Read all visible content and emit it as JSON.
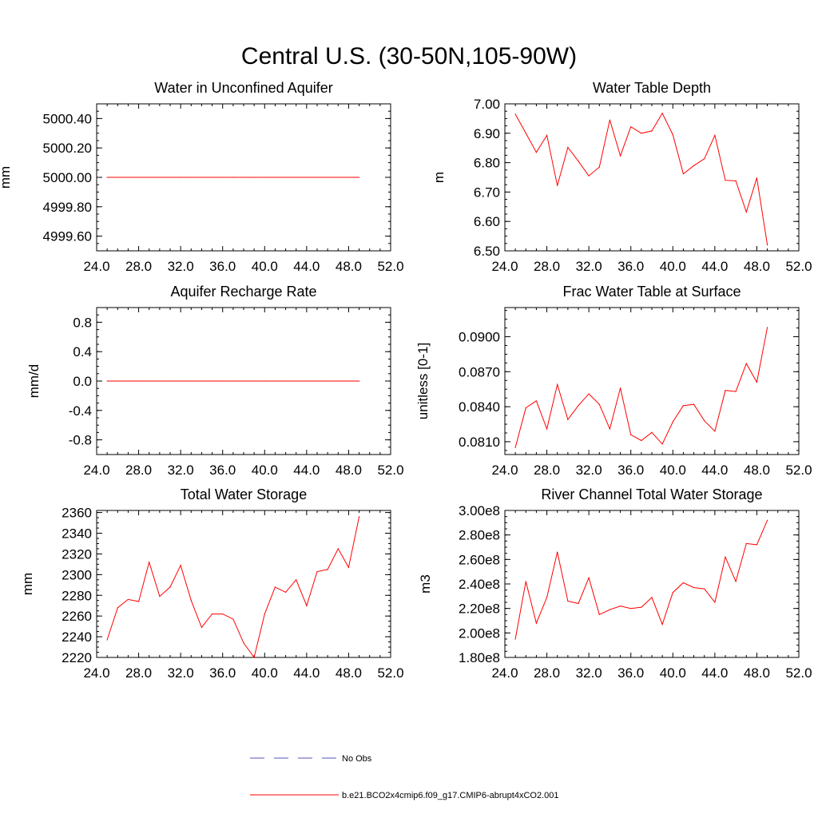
{
  "figure_title": "Central U.S. (30-50N,105-90W)",
  "colors": {
    "model": "#ff0000",
    "obs": "#5555bb",
    "axis": "#000000"
  },
  "legend": {
    "obs_label": "No Obs",
    "model_label": "b.e21.BCO2x4cmip6.f09_g17.CMIP6-abrupt4xCO2.001"
  },
  "chart_data": [
    {
      "type": "line",
      "title": "Water in Unconfined Aquifer",
      "xlabel": "",
      "ylabel": "mm",
      "xlim": [
        24,
        52
      ],
      "xticks": [
        24,
        28,
        32,
        36,
        40,
        44,
        48,
        52
      ],
      "xtick_labels": [
        "24.0",
        "28.0",
        "32.0",
        "36.0",
        "40.0",
        "44.0",
        "48.0",
        "52.0"
      ],
      "ylim": [
        4999.5,
        5000.5
      ],
      "yticks": [
        4999.6,
        4999.8,
        5000.0,
        5000.2,
        5000.4
      ],
      "ytick_labels": [
        "4999.60",
        "4999.80",
        "5000.00",
        "5000.20",
        "5000.40"
      ],
      "series": [
        {
          "name": "b.e21.BCO2x4cmip6.f09_g17.CMIP6-abrupt4xCO2.001",
          "x": [
            25,
            26,
            27,
            28,
            29,
            30,
            31,
            32,
            33,
            34,
            35,
            36,
            37,
            38,
            39,
            40,
            41,
            42,
            43,
            44,
            45,
            46,
            47,
            48,
            49
          ],
          "values": [
            5000,
            5000,
            5000,
            5000,
            5000,
            5000,
            5000,
            5000,
            5000,
            5000,
            5000,
            5000,
            5000,
            5000,
            5000,
            5000,
            5000,
            5000,
            5000,
            5000,
            5000,
            5000,
            5000,
            5000,
            5000
          ]
        }
      ]
    },
    {
      "type": "line",
      "title": "Water Table Depth",
      "xlabel": "",
      "ylabel": "m",
      "xlim": [
        24,
        52
      ],
      "xticks": [
        24,
        28,
        32,
        36,
        40,
        44,
        48,
        52
      ],
      "xtick_labels": [
        "24.0",
        "28.0",
        "32.0",
        "36.0",
        "40.0",
        "44.0",
        "48.0",
        "52.0"
      ],
      "ylim": [
        6.5,
        7.0
      ],
      "yticks": [
        6.5,
        6.6,
        6.7,
        6.8,
        6.9,
        7.0
      ],
      "ytick_labels": [
        "6.50",
        "6.60",
        "6.70",
        "6.80",
        "6.90",
        "7.00"
      ],
      "series": [
        {
          "name": "b.e21.BCO2x4cmip6.f09_g17.CMIP6-abrupt4xCO2.001",
          "x": [
            25,
            26,
            27,
            28,
            29,
            30,
            31,
            32,
            33,
            34,
            35,
            36,
            37,
            38,
            39,
            40,
            41,
            42,
            43,
            44,
            45,
            46,
            47,
            48,
            49
          ],
          "values": [
            6.965,
            6.9,
            6.835,
            6.893,
            6.722,
            6.852,
            6.805,
            6.755,
            6.785,
            6.945,
            6.823,
            6.922,
            6.9,
            6.908,
            6.968,
            6.895,
            6.762,
            6.79,
            6.813,
            6.893,
            6.74,
            6.738,
            6.632,
            6.748,
            6.52
          ]
        }
      ]
    },
    {
      "type": "line",
      "title": "Aquifer Recharge Rate",
      "xlabel": "",
      "ylabel": "mm/d",
      "xlim": [
        24,
        52
      ],
      "xticks": [
        24,
        28,
        32,
        36,
        40,
        44,
        48,
        52
      ],
      "xtick_labels": [
        "24.0",
        "28.0",
        "32.0",
        "36.0",
        "40.0",
        "44.0",
        "48.0",
        "52.0"
      ],
      "ylim": [
        -1.0,
        1.0
      ],
      "yticks": [
        -0.8,
        -0.4,
        0.0,
        0.4,
        0.8
      ],
      "ytick_labels": [
        "-0.8",
        "-0.4",
        "0.0",
        "0.4",
        "0.8"
      ],
      "series": [
        {
          "name": "b.e21.BCO2x4cmip6.f09_g17.CMIP6-abrupt4xCO2.001",
          "x": [
            25,
            26,
            27,
            28,
            29,
            30,
            31,
            32,
            33,
            34,
            35,
            36,
            37,
            38,
            39,
            40,
            41,
            42,
            43,
            44,
            45,
            46,
            47,
            48,
            49
          ],
          "values": [
            0,
            0,
            0,
            0,
            0,
            0,
            0,
            0,
            0,
            0,
            0,
            0,
            0,
            0,
            0,
            0,
            0,
            0,
            0,
            0,
            0,
            0,
            0,
            0,
            0
          ]
        }
      ]
    },
    {
      "type": "line",
      "title": "Frac Water Table at Surface",
      "xlabel": "",
      "ylabel": "unitless [0-1]",
      "xlim": [
        24,
        52
      ],
      "xticks": [
        24,
        28,
        32,
        36,
        40,
        44,
        48,
        52
      ],
      "xtick_labels": [
        "24.0",
        "28.0",
        "32.0",
        "36.0",
        "40.0",
        "44.0",
        "48.0",
        "52.0"
      ],
      "ylim": [
        0.0799,
        0.0925
      ],
      "yticks": [
        0.081,
        0.084,
        0.087,
        0.09
      ],
      "ytick_labels": [
        "0.0810",
        "0.0840",
        "0.0870",
        "0.0900"
      ],
      "series": [
        {
          "name": "b.e21.BCO2x4cmip6.f09_g17.CMIP6-abrupt4xCO2.001",
          "x": [
            25,
            26,
            27,
            28,
            29,
            30,
            31,
            32,
            33,
            34,
            35,
            36,
            37,
            38,
            39,
            40,
            41,
            42,
            43,
            44,
            45,
            46,
            47,
            48,
            49
          ],
          "values": [
            0.0805,
            0.0839,
            0.0845,
            0.0821,
            0.0859,
            0.0829,
            0.0841,
            0.0851,
            0.0842,
            0.0821,
            0.0856,
            0.0816,
            0.0811,
            0.0818,
            0.0808,
            0.0827,
            0.0841,
            0.0842,
            0.0828,
            0.0819,
            0.0854,
            0.0853,
            0.0877,
            0.0861,
            0.0908
          ]
        }
      ]
    },
    {
      "type": "line",
      "title": "Total Water Storage",
      "xlabel": "",
      "ylabel": "mm",
      "xlim": [
        24,
        52
      ],
      "xticks": [
        24,
        28,
        32,
        36,
        40,
        44,
        48,
        52
      ],
      "xtick_labels": [
        "24.0",
        "28.0",
        "32.0",
        "36.0",
        "40.0",
        "44.0",
        "48.0",
        "52.0"
      ],
      "ylim": [
        2220,
        2362
      ],
      "yticks": [
        2220,
        2240,
        2260,
        2280,
        2300,
        2320,
        2340,
        2360
      ],
      "ytick_labels": [
        "2220",
        "2240",
        "2260",
        "2280",
        "2300",
        "2320",
        "2340",
        "2360"
      ],
      "series": [
        {
          "name": "b.e21.BCO2x4cmip6.f09_g17.CMIP6-abrupt4xCO2.001",
          "x": [
            25,
            26,
            27,
            28,
            29,
            30,
            31,
            32,
            33,
            34,
            35,
            36,
            37,
            38,
            39,
            40,
            41,
            42,
            43,
            44,
            45,
            46,
            47,
            48,
            49
          ],
          "values": [
            2237,
            2268,
            2276,
            2274,
            2312,
            2279,
            2288,
            2309,
            2275,
            2249,
            2262,
            2262,
            2257,
            2234,
            2220,
            2262,
            2288,
            2283,
            2295,
            2270,
            2303,
            2305,
            2325,
            2307,
            2356
          ]
        }
      ]
    },
    {
      "type": "line",
      "title": "River Channel Total Water Storage",
      "xlabel": "",
      "ylabel": "m3",
      "xlim": [
        24,
        52
      ],
      "xticks": [
        24,
        28,
        32,
        36,
        40,
        44,
        48,
        52
      ],
      "xtick_labels": [
        "24.0",
        "28.0",
        "32.0",
        "36.0",
        "40.0",
        "44.0",
        "48.0",
        "52.0"
      ],
      "ylim": [
        180000000,
        300000000
      ],
      "yticks": [
        180000000,
        200000000,
        220000000,
        240000000,
        260000000,
        280000000,
        300000000
      ],
      "ytick_labels": [
        "1.80e8",
        "2.00e8",
        "2.20e8",
        "2.40e8",
        "2.60e8",
        "2.80e8",
        "3.00e8"
      ],
      "series": [
        {
          "name": "b.e21.BCO2x4cmip6.f09_g17.CMIP6-abrupt4xCO2.001",
          "x": [
            25,
            26,
            27,
            28,
            29,
            30,
            31,
            32,
            33,
            34,
            35,
            36,
            37,
            38,
            39,
            40,
            41,
            42,
            43,
            44,
            45,
            46,
            47,
            48,
            49
          ],
          "values": [
            195000000,
            242000000,
            208000000,
            229000000,
            266000000,
            226000000,
            224000000,
            245000000,
            215000000,
            219000000,
            222000000,
            220000000,
            221000000,
            229000000,
            207000000,
            233000000,
            241000000,
            237000000,
            236000000,
            225000000,
            262000000,
            242000000,
            273000000,
            272000000,
            292000000
          ]
        }
      ]
    }
  ]
}
